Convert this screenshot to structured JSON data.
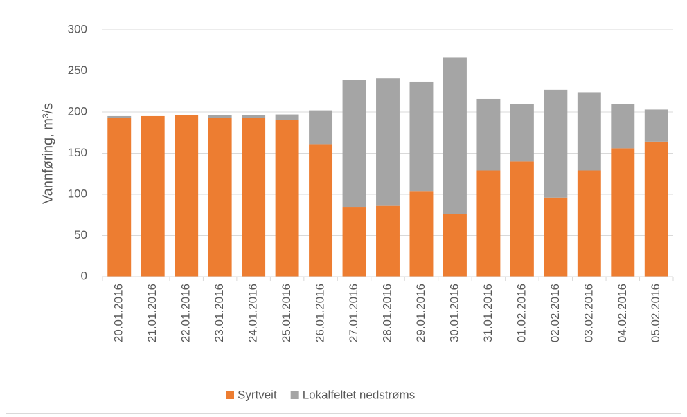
{
  "chart_data": {
    "type": "stacked_bar",
    "y_label": "Vannføring, m³/s",
    "categories": [
      "20.01.2016",
      "21.01.2016",
      "22.01.2016",
      "23.01.2016",
      "24.01.2016",
      "25.01.2016",
      "26.01.2016",
      "27.01.2016",
      "28.01.2016",
      "29.01.2016",
      "30.01.2016",
      "31.01.2016",
      "01.02.2016",
      "02.02.2016",
      "03.02.2016",
      "04.02.2016",
      "05.02.2016"
    ],
    "series": [
      {
        "name": "Syrtveit",
        "color": "#ed7d31",
        "values": [
          193,
          195,
          196,
          193,
          193,
          190,
          161,
          84,
          86,
          104,
          76,
          129,
          140,
          96,
          129,
          156,
          164
        ]
      },
      {
        "name": "Lokalfeltet nedstrøms",
        "color": "#a5a5a5",
        "values": [
          2,
          0,
          0,
          3,
          3,
          7,
          41,
          155,
          155,
          133,
          190,
          87,
          70,
          131,
          95,
          54,
          39
        ]
      }
    ],
    "ylim": [
      0,
      300
    ],
    "yticks": [
      0,
      50,
      100,
      150,
      200,
      250,
      300
    ],
    "grid": true,
    "legend": "bottom"
  }
}
